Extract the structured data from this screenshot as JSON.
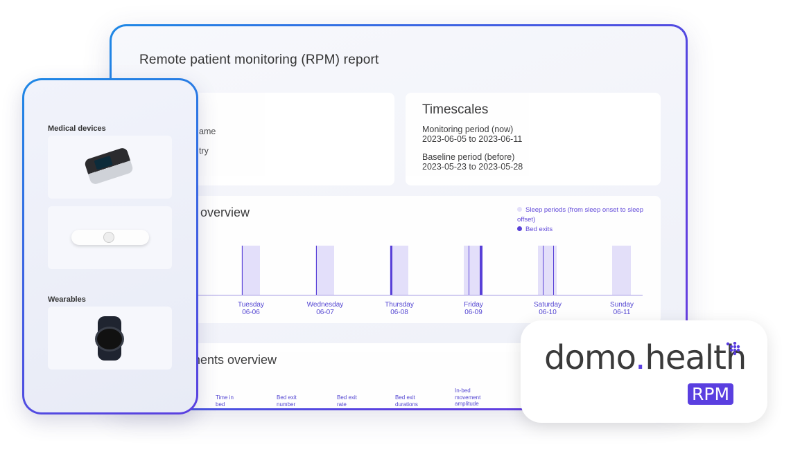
{
  "report": {
    "title": "Remote patient monitoring (RPM) report",
    "info_labels": [
      "ame",
      "try"
    ],
    "timescales": {
      "heading": "Timescales",
      "monitoring_label": "Monitoring period (now)",
      "monitoring_range": "2023-06-05 to 2023-06-11",
      "baseline_label": "Baseline period (before)",
      "baseline_range": "2023-05-23 to 2023-05-28"
    },
    "sleep_section": {
      "title": "overview",
      "legend": {
        "sleep": "Sleep periods (from sleep onset to sleep offset)",
        "exits": "Bed exits"
      }
    },
    "measurements": {
      "title": "rements overview",
      "columns": [
        "Time in bed",
        "Bed exit number",
        "Bed exit rate",
        "Bed exit durations",
        "In-bed movement amplitude"
      ]
    }
  },
  "colors": {
    "accent": "#5a3fe0",
    "sleep": "#e3defa",
    "exit": "#5037d6",
    "frame_start": "#1e88e5"
  },
  "chart_data": {
    "type": "bar",
    "title": "Sleep overview",
    "days": [
      {
        "day": "Tuesday",
        "date": "06-06",
        "exits": [
          0.02
        ]
      },
      {
        "day": "Wednesday",
        "date": "06-07",
        "exits": [
          0.02
        ]
      },
      {
        "day": "Thursday",
        "date": "06-08",
        "exits": [
          0.05
        ]
      },
      {
        "day": "Friday",
        "date": "06-09",
        "exits": [
          0.25,
          0.85
        ]
      },
      {
        "day": "Saturday",
        "date": "06-10",
        "exits": [
          0.25,
          0.8
        ]
      },
      {
        "day": "Sunday",
        "date": "06-11",
        "exits": []
      }
    ]
  },
  "phone": {
    "sections": [
      {
        "label": "Medical devices"
      },
      {
        "label": "Wearables"
      }
    ]
  },
  "logo": {
    "brand_a": "domo",
    "brand_dot": ".",
    "brand_b": "health",
    "badge": "RPM"
  }
}
